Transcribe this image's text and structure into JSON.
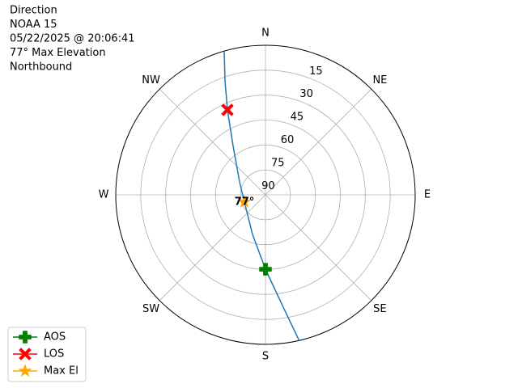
{
  "chart_data": {
    "type": "polar",
    "title_lines": [
      "Direction",
      "NOAA 15",
      "05/22/2025 @ 20:06:41",
      "77° Max Elevation",
      "Northbound"
    ],
    "rlim": [
      90,
      0
    ],
    "rticks": [
      90,
      75,
      60,
      45,
      30,
      15
    ],
    "thetaticks": [
      {
        "value": 0,
        "label": "N"
      },
      {
        "value": 45,
        "label": "NE"
      },
      {
        "value": 90,
        "label": "E"
      },
      {
        "value": 135,
        "label": "SE"
      },
      {
        "value": 180,
        "label": "S"
      },
      {
        "value": 225,
        "label": "SW"
      },
      {
        "value": 270,
        "label": "W"
      },
      {
        "value": 315,
        "label": "NW"
      }
    ],
    "grid": true,
    "legend": "lower left",
    "track": {
      "color": "#1f77b4",
      "x": [
        167,
        171,
        180,
        198.1,
        251,
        296.6,
        326.7,
        335.9,
        340.5,
        344
      ],
      "values": [
        0,
        21.5,
        45.2,
        64.9,
        76.6,
        72.6,
        54.5,
        34,
        17.2,
        0
      ]
    },
    "series": [
      {
        "name": "AOS",
        "color": "#008000",
        "marker": "plus",
        "x": [
          180
        ],
        "values": [
          45.2
        ]
      },
      {
        "name": "LOS",
        "color": "#ff0000",
        "marker": "x",
        "x": [
          335.9
        ],
        "values": [
          34
        ]
      },
      {
        "name": "Max El",
        "color": "#ffa500",
        "marker": "star",
        "x": [
          251
        ],
        "values": [
          76.6
        ]
      }
    ],
    "annotation": "77°"
  }
}
